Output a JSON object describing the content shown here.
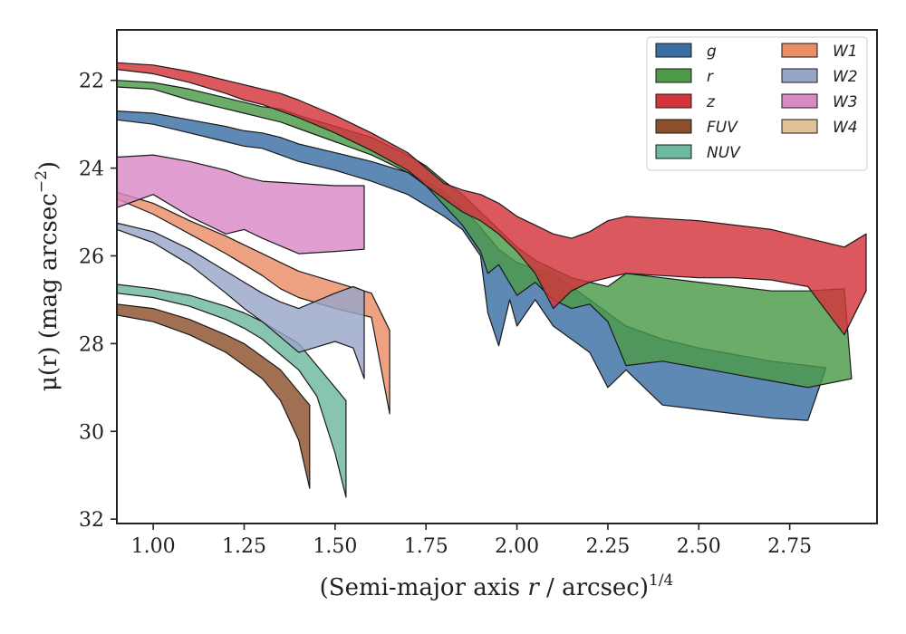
{
  "chart_data": {
    "type": "area",
    "xlabel_main": "(Semi-major axis ",
    "xlabel_var": "r",
    "xlabel_tail": " / arcsec)",
    "xlabel_sup": "1/4",
    "ylabel_main": "μ(r) (mag arcsec",
    "ylabel_sup": "−2",
    "ylabel_close": ")",
    "xlim": [
      0.9,
      2.99
    ],
    "ylim": [
      32.1,
      20.85
    ],
    "y_inverted": true,
    "xticks": [
      1.0,
      1.25,
      1.5,
      1.75,
      2.0,
      2.25,
      2.5,
      2.75
    ],
    "xtick_labels": [
      "1.00",
      "1.25",
      "1.50",
      "1.75",
      "2.00",
      "2.25",
      "2.50",
      "2.75"
    ],
    "yticks": [
      22,
      24,
      26,
      28,
      30,
      32
    ],
    "ytick_labels": [
      "22",
      "24",
      "26",
      "28",
      "30",
      "32"
    ],
    "legend_position": "top-right",
    "series": [
      {
        "name": "g",
        "color": "#3a6fa3",
        "upper": [
          [
            0.9,
            22.7
          ],
          [
            1.0,
            22.75
          ],
          [
            1.1,
            22.9
          ],
          [
            1.2,
            23.05
          ],
          [
            1.25,
            23.15
          ],
          [
            1.3,
            23.2
          ],
          [
            1.35,
            23.3
          ],
          [
            1.4,
            23.45
          ],
          [
            1.5,
            23.65
          ],
          [
            1.6,
            23.85
          ],
          [
            1.7,
            24.1
          ],
          [
            1.75,
            24.3
          ],
          [
            1.8,
            24.55
          ],
          [
            1.85,
            24.9
          ],
          [
            1.9,
            25.35
          ],
          [
            1.95,
            25.85
          ],
          [
            2.0,
            26.15
          ],
          [
            2.05,
            26.3
          ],
          [
            2.1,
            26.4
          ],
          [
            2.15,
            26.7
          ],
          [
            2.2,
            27.0
          ],
          [
            2.25,
            27.3
          ],
          [
            2.3,
            27.6
          ],
          [
            2.4,
            27.9
          ],
          [
            2.5,
            28.1
          ],
          [
            2.6,
            28.25
          ],
          [
            2.7,
            28.4
          ],
          [
            2.8,
            28.5
          ],
          [
            2.85,
            28.55
          ]
        ],
        "lower": [
          [
            0.9,
            22.9
          ],
          [
            1.0,
            23.0
          ],
          [
            1.1,
            23.2
          ],
          [
            1.2,
            23.4
          ],
          [
            1.25,
            23.5
          ],
          [
            1.3,
            23.55
          ],
          [
            1.35,
            23.7
          ],
          [
            1.4,
            23.85
          ],
          [
            1.5,
            24.05
          ],
          [
            1.6,
            24.3
          ],
          [
            1.7,
            24.6
          ],
          [
            1.75,
            24.85
          ],
          [
            1.8,
            25.1
          ],
          [
            1.85,
            25.4
          ],
          [
            1.9,
            26.0
          ],
          [
            1.92,
            27.3
          ],
          [
            1.95,
            28.05
          ],
          [
            1.98,
            27.0
          ],
          [
            2.0,
            27.6
          ],
          [
            2.05,
            27.0
          ],
          [
            2.1,
            27.6
          ],
          [
            2.15,
            27.9
          ],
          [
            2.2,
            28.2
          ],
          [
            2.25,
            29.0
          ],
          [
            2.3,
            28.6
          ],
          [
            2.35,
            29.0
          ],
          [
            2.4,
            29.4
          ],
          [
            2.5,
            29.5
          ],
          [
            2.6,
            29.6
          ],
          [
            2.7,
            29.7
          ],
          [
            2.8,
            29.75
          ]
        ]
      },
      {
        "name": "r",
        "color": "#4c9a48",
        "upper": [
          [
            0.9,
            22.0
          ],
          [
            1.0,
            22.05
          ],
          [
            1.1,
            22.2
          ],
          [
            1.2,
            22.4
          ],
          [
            1.25,
            22.5
          ],
          [
            1.3,
            22.6
          ],
          [
            1.35,
            22.65
          ],
          [
            1.4,
            22.8
          ],
          [
            1.5,
            23.05
          ],
          [
            1.6,
            23.3
          ],
          [
            1.7,
            23.7
          ],
          [
            1.75,
            23.95
          ],
          [
            1.8,
            24.3
          ],
          [
            1.85,
            24.6
          ],
          [
            1.9,
            25.0
          ],
          [
            1.95,
            25.4
          ],
          [
            2.0,
            25.8
          ],
          [
            2.05,
            26.1
          ],
          [
            2.1,
            26.3
          ],
          [
            2.15,
            26.5
          ],
          [
            2.2,
            26.6
          ],
          [
            2.25,
            26.7
          ],
          [
            2.3,
            26.4
          ],
          [
            2.4,
            26.5
          ],
          [
            2.5,
            26.6
          ],
          [
            2.6,
            26.7
          ],
          [
            2.7,
            26.8
          ],
          [
            2.8,
            26.8
          ],
          [
            2.9,
            26.75
          ]
        ],
        "lower": [
          [
            0.9,
            22.15
          ],
          [
            1.0,
            22.2
          ],
          [
            1.1,
            22.45
          ],
          [
            1.2,
            22.65
          ],
          [
            1.25,
            22.75
          ],
          [
            1.3,
            22.85
          ],
          [
            1.35,
            22.95
          ],
          [
            1.4,
            23.1
          ],
          [
            1.5,
            23.4
          ],
          [
            1.6,
            23.7
          ],
          [
            1.7,
            24.1
          ],
          [
            1.75,
            24.4
          ],
          [
            1.8,
            24.85
          ],
          [
            1.85,
            25.3
          ],
          [
            1.9,
            25.9
          ],
          [
            1.92,
            26.4
          ],
          [
            1.95,
            26.2
          ],
          [
            2.0,
            26.9
          ],
          [
            2.05,
            26.6
          ],
          [
            2.1,
            27.0
          ],
          [
            2.15,
            27.2
          ],
          [
            2.2,
            27.1
          ],
          [
            2.25,
            27.5
          ],
          [
            2.3,
            28.5
          ],
          [
            2.4,
            28.4
          ],
          [
            2.5,
            28.55
          ],
          [
            2.6,
            28.7
          ],
          [
            2.7,
            28.85
          ],
          [
            2.8,
            29.0
          ],
          [
            2.92,
            28.8
          ]
        ]
      },
      {
        "name": "z",
        "color": "#d3353a",
        "upper": [
          [
            0.9,
            21.6
          ],
          [
            1.0,
            21.65
          ],
          [
            1.1,
            21.8
          ],
          [
            1.2,
            22.0
          ],
          [
            1.25,
            22.1
          ],
          [
            1.3,
            22.2
          ],
          [
            1.35,
            22.3
          ],
          [
            1.4,
            22.45
          ],
          [
            1.5,
            22.8
          ],
          [
            1.6,
            23.2
          ],
          [
            1.7,
            23.65
          ],
          [
            1.75,
            24.0
          ],
          [
            1.8,
            24.35
          ],
          [
            1.85,
            24.5
          ],
          [
            1.9,
            24.6
          ],
          [
            1.95,
            24.8
          ],
          [
            2.0,
            25.1
          ],
          [
            2.05,
            25.3
          ],
          [
            2.1,
            25.5
          ],
          [
            2.15,
            25.6
          ],
          [
            2.2,
            25.45
          ],
          [
            2.25,
            25.2
          ],
          [
            2.3,
            25.1
          ],
          [
            2.4,
            25.15
          ],
          [
            2.5,
            25.2
          ],
          [
            2.6,
            25.3
          ],
          [
            2.7,
            25.4
          ],
          [
            2.8,
            25.6
          ],
          [
            2.9,
            25.8
          ],
          [
            2.96,
            25.5
          ]
        ],
        "lower": [
          [
            0.9,
            21.75
          ],
          [
            1.0,
            21.85
          ],
          [
            1.1,
            22.05
          ],
          [
            1.2,
            22.3
          ],
          [
            1.25,
            22.45
          ],
          [
            1.3,
            22.55
          ],
          [
            1.35,
            22.7
          ],
          [
            1.4,
            22.85
          ],
          [
            1.5,
            23.2
          ],
          [
            1.6,
            23.6
          ],
          [
            1.7,
            24.05
          ],
          [
            1.75,
            24.4
          ],
          [
            1.8,
            24.7
          ],
          [
            1.85,
            25.0
          ],
          [
            1.9,
            25.2
          ],
          [
            1.95,
            25.5
          ],
          [
            2.0,
            25.9
          ],
          [
            2.05,
            26.4
          ],
          [
            2.1,
            27.2
          ],
          [
            2.15,
            26.8
          ],
          [
            2.2,
            26.6
          ],
          [
            2.25,
            26.5
          ],
          [
            2.3,
            26.4
          ],
          [
            2.4,
            26.45
          ],
          [
            2.5,
            26.5
          ],
          [
            2.6,
            26.5
          ],
          [
            2.7,
            26.55
          ],
          [
            2.8,
            26.7
          ],
          [
            2.9,
            27.8
          ],
          [
            2.96,
            26.8
          ]
        ]
      },
      {
        "name": "FUV",
        "color": "#8c4f2c",
        "upper": [
          [
            0.9,
            27.1
          ],
          [
            1.0,
            27.2
          ],
          [
            1.1,
            27.45
          ],
          [
            1.2,
            27.8
          ],
          [
            1.25,
            28.0
          ],
          [
            1.3,
            28.3
          ],
          [
            1.35,
            28.6
          ],
          [
            1.4,
            29.1
          ],
          [
            1.43,
            29.4
          ]
        ],
        "lower": [
          [
            0.9,
            27.35
          ],
          [
            1.0,
            27.5
          ],
          [
            1.1,
            27.8
          ],
          [
            1.2,
            28.2
          ],
          [
            1.25,
            28.5
          ],
          [
            1.3,
            28.8
          ],
          [
            1.35,
            29.3
          ],
          [
            1.4,
            30.2
          ],
          [
            1.43,
            31.3
          ]
        ]
      },
      {
        "name": "NUV",
        "color": "#6cb8a0",
        "upper": [
          [
            0.9,
            26.65
          ],
          [
            1.0,
            26.75
          ],
          [
            1.1,
            26.9
          ],
          [
            1.2,
            27.15
          ],
          [
            1.25,
            27.3
          ],
          [
            1.3,
            27.5
          ],
          [
            1.35,
            27.75
          ],
          [
            1.4,
            28.0
          ],
          [
            1.45,
            28.5
          ],
          [
            1.5,
            29.0
          ],
          [
            1.53,
            29.3
          ]
        ],
        "lower": [
          [
            0.9,
            26.85
          ],
          [
            1.0,
            26.95
          ],
          [
            1.1,
            27.15
          ],
          [
            1.2,
            27.45
          ],
          [
            1.25,
            27.65
          ],
          [
            1.3,
            27.9
          ],
          [
            1.35,
            28.25
          ],
          [
            1.4,
            28.6
          ],
          [
            1.45,
            29.2
          ],
          [
            1.5,
            30.5
          ],
          [
            1.53,
            31.5
          ]
        ]
      },
      {
        "name": "W1",
        "color": "#ea8e67",
        "upper": [
          [
            0.9,
            24.55
          ],
          [
            1.0,
            24.8
          ],
          [
            1.1,
            25.2
          ],
          [
            1.2,
            25.55
          ],
          [
            1.25,
            25.75
          ],
          [
            1.3,
            25.95
          ],
          [
            1.35,
            26.15
          ],
          [
            1.4,
            26.35
          ],
          [
            1.5,
            26.6
          ],
          [
            1.6,
            26.85
          ],
          [
            1.65,
            27.7
          ]
        ],
        "lower": [
          [
            0.9,
            24.7
          ],
          [
            1.0,
            25.05
          ],
          [
            1.1,
            25.5
          ],
          [
            1.2,
            25.95
          ],
          [
            1.25,
            26.2
          ],
          [
            1.3,
            26.45
          ],
          [
            1.35,
            26.75
          ],
          [
            1.4,
            26.95
          ],
          [
            1.5,
            27.2
          ],
          [
            1.6,
            27.4
          ],
          [
            1.65,
            29.6
          ]
        ]
      },
      {
        "name": "W2",
        "color": "#97a6c8",
        "upper": [
          [
            0.9,
            25.25
          ],
          [
            1.0,
            25.45
          ],
          [
            1.1,
            25.85
          ],
          [
            1.2,
            26.35
          ],
          [
            1.25,
            26.6
          ],
          [
            1.3,
            26.85
          ],
          [
            1.35,
            27.05
          ],
          [
            1.4,
            27.2
          ],
          [
            1.5,
            26.85
          ],
          [
            1.55,
            26.7
          ],
          [
            1.58,
            26.8
          ]
        ],
        "lower": [
          [
            0.9,
            25.4
          ],
          [
            1.0,
            25.7
          ],
          [
            1.1,
            26.2
          ],
          [
            1.2,
            26.85
          ],
          [
            1.25,
            27.2
          ],
          [
            1.3,
            27.5
          ],
          [
            1.35,
            27.85
          ],
          [
            1.4,
            28.2
          ],
          [
            1.5,
            27.95
          ],
          [
            1.55,
            28.1
          ],
          [
            1.58,
            28.8
          ]
        ]
      },
      {
        "name": "W3",
        "color": "#d98ac6",
        "upper": [
          [
            0.9,
            23.75
          ],
          [
            1.0,
            23.7
          ],
          [
            1.1,
            23.85
          ],
          [
            1.2,
            24.05
          ],
          [
            1.25,
            24.2
          ],
          [
            1.3,
            24.3
          ],
          [
            1.4,
            24.35
          ],
          [
            1.5,
            24.4
          ],
          [
            1.58,
            24.4
          ]
        ],
        "lower": [
          [
            0.9,
            24.9
          ],
          [
            1.0,
            24.6
          ],
          [
            1.1,
            25.1
          ],
          [
            1.2,
            25.5
          ],
          [
            1.25,
            25.4
          ],
          [
            1.3,
            25.6
          ],
          [
            1.4,
            25.95
          ],
          [
            1.5,
            25.9
          ],
          [
            1.58,
            25.85
          ]
        ]
      },
      {
        "name": "W4",
        "color": "#dfc19a",
        "upper": [],
        "lower": []
      }
    ]
  }
}
